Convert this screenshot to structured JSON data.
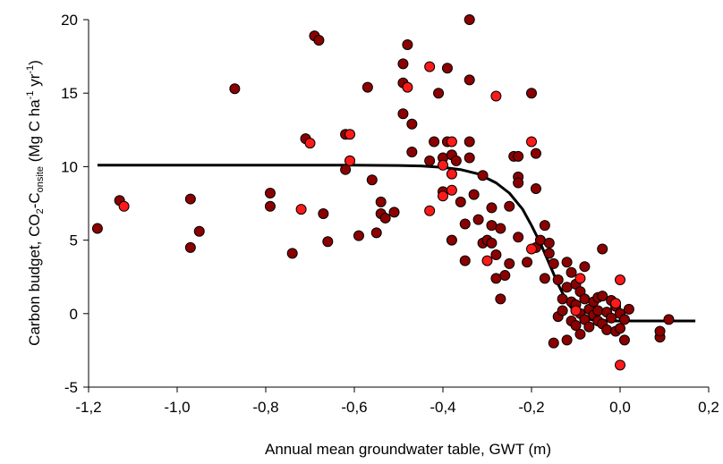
{
  "chart_data": {
    "type": "scatter",
    "xlabel": "Annual mean groundwater table, GWT (m)",
    "ylabel": {
      "p1": "Carbon budget, CO",
      "s1": "2",
      "p2": "-C",
      "s2": "onsite",
      "p3": " (Mg C ha",
      "e1": "-1",
      "p4": " yr",
      "e2": "-1",
      "p5": ")"
    },
    "xlim": [
      -1.2,
      0.2
    ],
    "ylim": [
      -5,
      20
    ],
    "x_ticks": [
      -1.2,
      -1.0,
      -0.8,
      -0.6,
      -0.4,
      -0.2,
      0.0,
      0.2
    ],
    "x_tick_labels": [
      "-1,2",
      "-1,0",
      "-0,8",
      "-0,6",
      "-0,4",
      "-0,2",
      "0,0",
      "0,2"
    ],
    "y_ticks": [
      -5,
      0,
      5,
      10,
      15,
      20
    ],
    "y_tick_labels": [
      "-5",
      "0",
      "5",
      "10",
      "15",
      "20"
    ],
    "grid": false,
    "legend": "none",
    "colors": {
      "dark_points": "#8b0000",
      "bright_points": "#ff1a1a",
      "curve": "#000000"
    },
    "fit_curve": {
      "x": [
        -1.18,
        -0.8,
        -0.6,
        -0.5,
        -0.45,
        -0.4,
        -0.36,
        -0.32,
        -0.28,
        -0.25,
        -0.22,
        -0.2,
        -0.18,
        -0.16,
        -0.14,
        -0.12,
        -0.1,
        -0.08,
        -0.06,
        -0.02,
        0.05,
        0.1,
        0.17
      ],
      "y": [
        10.1,
        10.1,
        10.1,
        10.08,
        10.05,
        9.95,
        9.8,
        9.5,
        8.9,
        8.2,
        7.1,
        6.0,
        4.8,
        3.4,
        2.0,
        0.8,
        0.0,
        -0.3,
        -0.45,
        -0.5,
        -0.5,
        -0.5,
        -0.5
      ]
    },
    "series": [
      {
        "style": "dark",
        "points": [
          [
            -1.18,
            5.8
          ],
          [
            -1.13,
            7.7
          ],
          [
            -0.97,
            7.8
          ],
          [
            -0.97,
            4.5
          ],
          [
            -0.95,
            5.6
          ],
          [
            -0.87,
            15.3
          ],
          [
            -0.79,
            8.2
          ],
          [
            -0.79,
            7.3
          ],
          [
            -0.74,
            4.1
          ],
          [
            -0.71,
            11.9
          ],
          [
            -0.69,
            18.9
          ],
          [
            -0.68,
            18.6
          ],
          [
            -0.67,
            6.8
          ],
          [
            -0.66,
            4.9
          ],
          [
            -0.62,
            9.8
          ],
          [
            -0.62,
            12.2
          ],
          [
            -0.61,
            10.4
          ],
          [
            -0.59,
            5.3
          ],
          [
            -0.57,
            15.4
          ],
          [
            -0.56,
            9.1
          ],
          [
            -0.55,
            5.5
          ],
          [
            -0.54,
            7.6
          ],
          [
            -0.54,
            6.8
          ],
          [
            -0.53,
            6.5
          ],
          [
            -0.51,
            6.9
          ],
          [
            -0.49,
            17.0
          ],
          [
            -0.49,
            15.7
          ],
          [
            -0.49,
            13.6
          ],
          [
            -0.48,
            18.3
          ],
          [
            -0.47,
            12.9
          ],
          [
            -0.47,
            11.0
          ],
          [
            -0.43,
            10.4
          ],
          [
            -0.42,
            11.7
          ],
          [
            -0.41,
            15.0
          ],
          [
            -0.4,
            8.3
          ],
          [
            -0.4,
            10.6
          ],
          [
            -0.39,
            11.7
          ],
          [
            -0.39,
            16.7
          ],
          [
            -0.38,
            10.8
          ],
          [
            -0.38,
            5.0
          ],
          [
            -0.37,
            10.4
          ],
          [
            -0.36,
            7.6
          ],
          [
            -0.35,
            6.1
          ],
          [
            -0.35,
            3.6
          ],
          [
            -0.34,
            20.0
          ],
          [
            -0.34,
            15.9
          ],
          [
            -0.34,
            11.7
          ],
          [
            -0.34,
            10.6
          ],
          [
            -0.33,
            8.1
          ],
          [
            -0.32,
            6.4
          ],
          [
            -0.31,
            9.4
          ],
          [
            -0.31,
            4.8
          ],
          [
            -0.3,
            5.0
          ],
          [
            -0.29,
            7.2
          ],
          [
            -0.29,
            6.0
          ],
          [
            -0.29,
            4.8
          ],
          [
            -0.28,
            4.0
          ],
          [
            -0.28,
            2.4
          ],
          [
            -0.27,
            5.8
          ],
          [
            -0.27,
            1.0
          ],
          [
            -0.26,
            2.6
          ],
          [
            -0.25,
            7.3
          ],
          [
            -0.25,
            3.4
          ],
          [
            -0.24,
            10.7
          ],
          [
            -0.23,
            10.7
          ],
          [
            -0.23,
            9.3
          ],
          [
            -0.23,
            8.9
          ],
          [
            -0.23,
            5.2
          ],
          [
            -0.21,
            3.5
          ],
          [
            -0.2,
            15.0
          ],
          [
            -0.19,
            10.9
          ],
          [
            -0.19,
            8.5
          ],
          [
            -0.19,
            4.5
          ],
          [
            -0.18,
            5.0
          ],
          [
            -0.17,
            6.0
          ],
          [
            -0.17,
            2.4
          ],
          [
            -0.16,
            4.8
          ],
          [
            -0.16,
            4.1
          ],
          [
            -0.15,
            3.4
          ],
          [
            -0.15,
            -2.0
          ],
          [
            -0.14,
            2.3
          ],
          [
            -0.14,
            -0.2
          ],
          [
            -0.13,
            1.0
          ],
          [
            -0.13,
            0.2
          ],
          [
            -0.12,
            3.5
          ],
          [
            -0.12,
            1.8
          ],
          [
            -0.12,
            -1.8
          ],
          [
            -0.11,
            2.8
          ],
          [
            -0.11,
            0.8
          ],
          [
            -0.11,
            -0.5
          ],
          [
            -0.1,
            2.0
          ],
          [
            -0.1,
            0.6
          ],
          [
            -0.1,
            -0.8
          ],
          [
            -0.09,
            1.5
          ],
          [
            -0.09,
            0.0
          ],
          [
            -0.09,
            -1.4
          ],
          [
            -0.08,
            3.2
          ],
          [
            -0.08,
            1.0
          ],
          [
            -0.08,
            -0.4
          ],
          [
            -0.07,
            0.3
          ],
          [
            -0.07,
            -0.9
          ],
          [
            -0.06,
            0.8
          ],
          [
            -0.06,
            -0.1
          ],
          [
            -0.05,
            1.1
          ],
          [
            -0.05,
            0.2
          ],
          [
            -0.05,
            -0.5
          ],
          [
            -0.04,
            4.4
          ],
          [
            -0.04,
            1.2
          ],
          [
            -0.04,
            -0.7
          ],
          [
            -0.03,
            0.1
          ],
          [
            -0.03,
            -1.1
          ],
          [
            -0.02,
            0.9
          ],
          [
            -0.02,
            -0.3
          ],
          [
            -0.01,
            0.5
          ],
          [
            -0.01,
            -1.2
          ],
          [
            0.0,
            0.0
          ],
          [
            0.0,
            -1.0
          ],
          [
            0.01,
            -0.4
          ],
          [
            0.01,
            -1.8
          ],
          [
            0.02,
            0.3
          ],
          [
            0.09,
            -1.6
          ],
          [
            0.09,
            -1.2
          ],
          [
            0.11,
            -0.4
          ]
        ]
      },
      {
        "style": "bright",
        "points": [
          [
            -1.12,
            7.3
          ],
          [
            -0.72,
            7.1
          ],
          [
            -0.7,
            11.6
          ],
          [
            -0.61,
            12.2
          ],
          [
            -0.61,
            10.4
          ],
          [
            -0.43,
            16.8
          ],
          [
            -0.43,
            7.0
          ],
          [
            -0.48,
            15.4
          ],
          [
            -0.4,
            10.1
          ],
          [
            -0.4,
            8.0
          ],
          [
            -0.38,
            11.7
          ],
          [
            -0.38,
            9.5
          ],
          [
            -0.38,
            8.4
          ],
          [
            -0.3,
            3.6
          ],
          [
            -0.28,
            14.8
          ],
          [
            -0.2,
            11.7
          ],
          [
            -0.2,
            4.4
          ],
          [
            -0.09,
            2.4
          ],
          [
            -0.1,
            0.2
          ],
          [
            -0.01,
            0.7
          ],
          [
            0.0,
            2.3
          ],
          [
            0.0,
            -3.5
          ]
        ]
      }
    ]
  }
}
